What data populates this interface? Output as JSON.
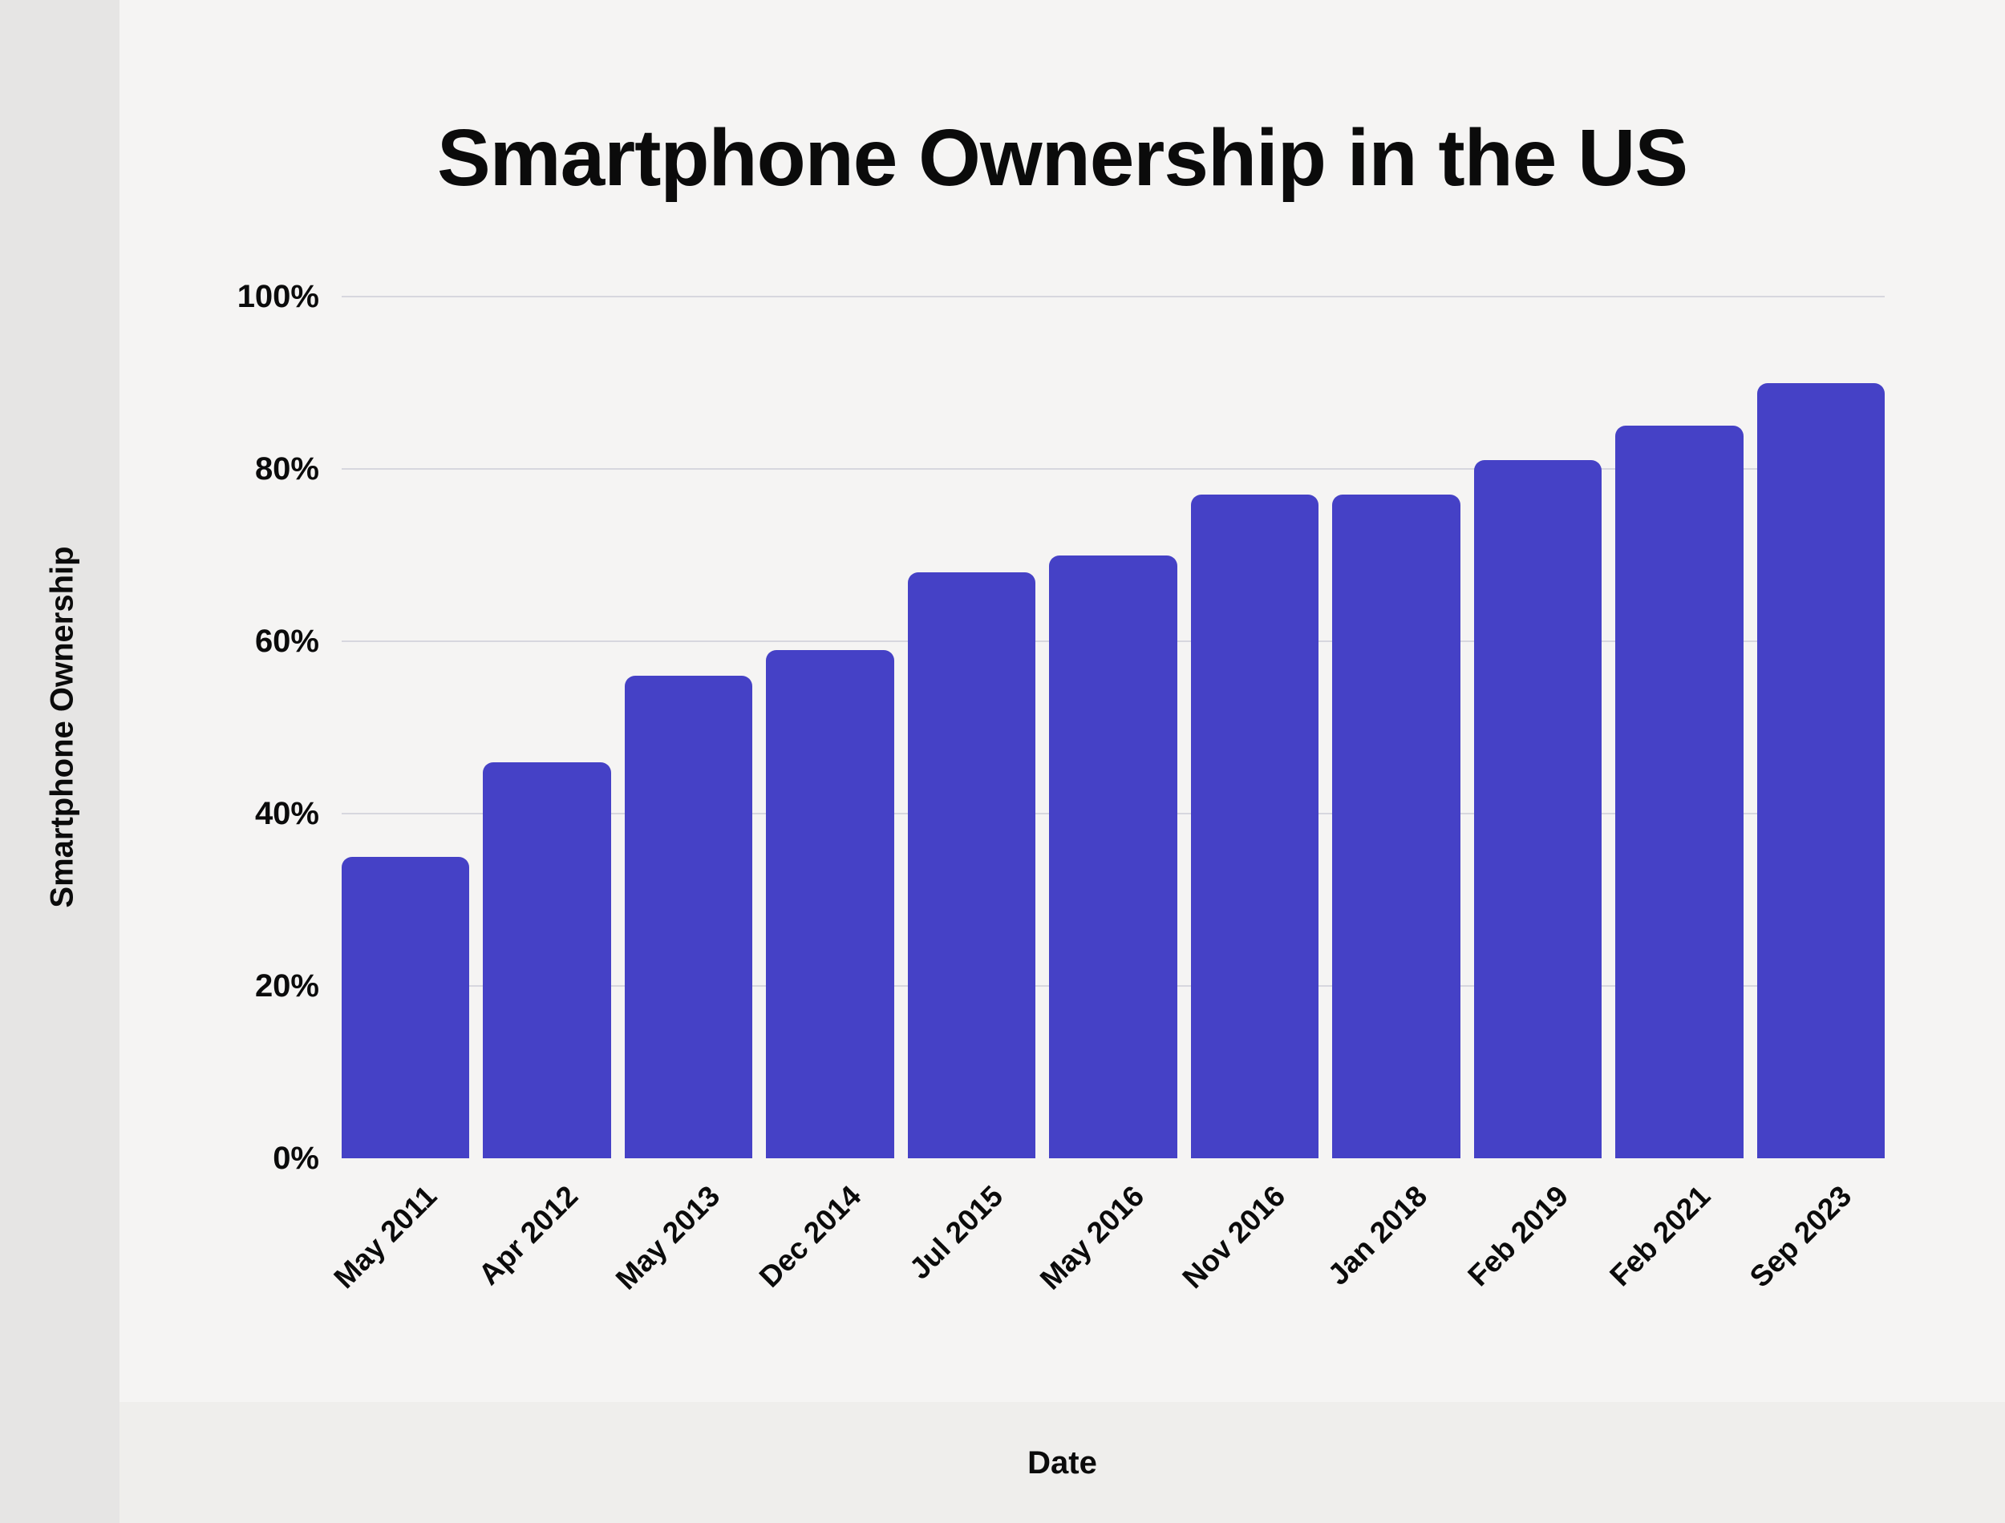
{
  "page": {
    "title": "Smartphone Ownership in the US",
    "x_axis_title": "Date",
    "y_axis_title": "Smartphone Ownership"
  },
  "chart_data": {
    "type": "bar",
    "title": "Smartphone Ownership in the US",
    "xlabel": "Date",
    "ylabel": "Smartphone Ownership",
    "categories": [
      "May 2011",
      "Apr 2012",
      "May 2013",
      "Dec 2014",
      "Jul 2015",
      "May 2016",
      "Nov 2016",
      "Jan 2018",
      "Feb 2019",
      "Feb 2021",
      "Sep 2023"
    ],
    "values": [
      35,
      46,
      56,
      59,
      68,
      70,
      77,
      77,
      81,
      85,
      90
    ],
    "ylim": [
      0,
      100
    ],
    "ytick_values": [
      0,
      20,
      40,
      60,
      80,
      100
    ],
    "ytick_labels": [
      "0%",
      "20%",
      "40%",
      "60%",
      "80%",
      "100%"
    ],
    "grid": "horizontal",
    "legend": "none",
    "bar_color": "#4541C6"
  },
  "colors": {
    "background": "#f5f4f3",
    "left_strip": "#e6e5e4",
    "bottom_band": "#efeeec",
    "gridline": "#d7d7de",
    "bar": "#4541C6",
    "text": "#0b0b0b"
  }
}
